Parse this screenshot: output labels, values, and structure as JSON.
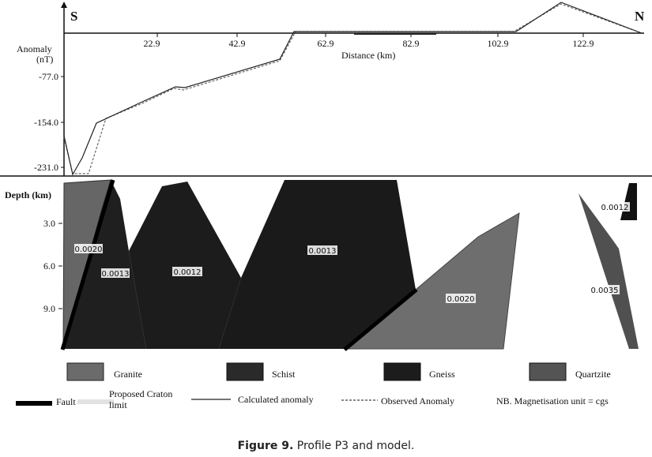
{
  "figure": {
    "compass": {
      "south": "S",
      "north": "N"
    },
    "anomaly_panel": {
      "y_label_line1": "Anomaly",
      "y_label_line2": "(nT)",
      "x_label": "Distance (km)",
      "x_ticks": [
        "22.9",
        "42.9",
        "62.9",
        "82.9",
        "102.9",
        "122.9"
      ],
      "y_ticks": [
        "-77.0",
        "-154.0",
        "-231.0"
      ]
    },
    "depth_panel": {
      "y_label": "Depth (km)",
      "y_ticks": [
        "3.0",
        "6.0",
        "9.0"
      ]
    },
    "body_labels": [
      "0.0020",
      "0.0013",
      "0.0012",
      "0.0013",
      "0.0020",
      "0.0012",
      "0.0035"
    ],
    "legend": {
      "granite": "Granite",
      "schist": "Schist",
      "gneiss": "Gneiss",
      "quartzite": "Quartzite",
      "fault": "Fault",
      "craton_line1": "Proposed Craton",
      "craton_line2": "limit",
      "calculated": "Calculated anomaly",
      "observed": "Observed Anomaly",
      "note": "NB. Magnetisation unit = cgs"
    },
    "colors": {
      "granite": "#6b6b6b",
      "schist": "#2a2a2a",
      "gneiss": "#1c1c1c",
      "quartzite": "#545454",
      "fault": "#000000",
      "craton": "#e2e2e2"
    }
  },
  "caption": {
    "label": "Figure 9.",
    "text": " Profile P3 and model."
  }
}
